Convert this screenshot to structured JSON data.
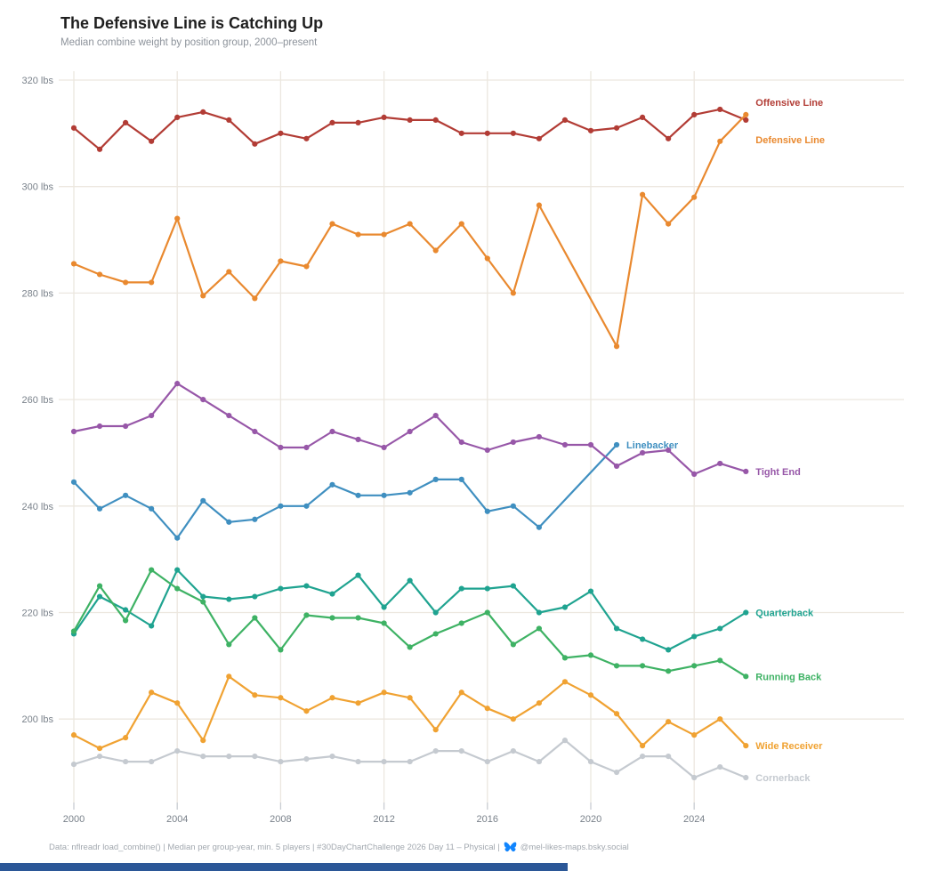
{
  "title": "The Defensive Line is Catching Up",
  "subtitle": "Median combine weight by position group, 2000–present",
  "footer": {
    "text": "Data: nflreadr load_combine() | Median per group-year, min. 5 players | #30DayChartChallenge 2026 Day 11 – Physical |",
    "icon": "bluesky-butterfly",
    "icon_color": "#1185fe",
    "handle": "@mel-likes-maps.bsky.social"
  },
  "colors": {
    "background": "#ffffff",
    "grid": "#ece7df",
    "axis_text": "#79818a",
    "title_text": "#1f1f1f",
    "subtitle_text": "#8d939b",
    "footer_text": "#a2a8af",
    "bottom_bar": "#2b5797"
  },
  "chart_data": {
    "type": "line",
    "title": "The Defensive Line is Catching Up",
    "subtitle": "Median combine weight by position group, 2000–present",
    "xlabel": "",
    "ylabel": "lbs",
    "grid": true,
    "legend_position": "line-end-labels-right",
    "ylim": [
      186,
      322
    ],
    "x": [
      2000,
      2001,
      2002,
      2003,
      2004,
      2005,
      2006,
      2007,
      2008,
      2009,
      2010,
      2011,
      2012,
      2013,
      2014,
      2015,
      2016,
      2017,
      2018,
      2019,
      2020,
      2021,
      2022,
      2023,
      2024,
      2025,
      2026
    ],
    "x_ticks": [
      2000,
      2004,
      2008,
      2012,
      2016,
      2020,
      2024
    ],
    "y_ticks": [
      {
        "value": 200,
        "label": "200 lbs"
      },
      {
        "value": 220,
        "label": "220 lbs"
      },
      {
        "value": 240,
        "label": "240 lbs"
      },
      {
        "value": 260,
        "label": "260 lbs"
      },
      {
        "value": 280,
        "label": "280 lbs"
      },
      {
        "value": 300,
        "label": "300 lbs"
      },
      {
        "value": 320,
        "label": "320 lbs"
      }
    ],
    "series": [
      {
        "name": "Offensive Line",
        "color": "#b23c35",
        "label_dy": -16,
        "values": [
          311,
          307,
          312,
          308.5,
          313,
          314,
          312.5,
          308,
          310,
          309,
          312,
          312,
          313,
          312.5,
          312.5,
          310,
          310,
          310,
          309,
          312.5,
          310.5,
          311,
          313,
          309,
          313.5,
          314.5,
          312.5
        ]
      },
      {
        "name": "Defensive Line",
        "color": "#e9892f",
        "label_dy": 32,
        "values": [
          285.5,
          283.5,
          282,
          282,
          294,
          279.5,
          284,
          279,
          286,
          285,
          293,
          291,
          291,
          293,
          288,
          293,
          286.5,
          280,
          296.5,
          null,
          null,
          270,
          298.5,
          293,
          298,
          308.5,
          313.5
        ]
      },
      {
        "name": "Linebacker",
        "color": "#3f8fc0",
        "label_dy": 4,
        "values": [
          244.5,
          239.5,
          242,
          239.5,
          234,
          241,
          237,
          237.5,
          240,
          240,
          244,
          242,
          242,
          242.5,
          245,
          245,
          239,
          240,
          236,
          null,
          null,
          251.5,
          null,
          null,
          null,
          null,
          null
        ]
      },
      {
        "name": "Tight End",
        "color": "#9757a8",
        "label_dy": 4,
        "values": [
          254,
          255,
          255,
          257,
          263,
          260,
          257,
          254,
          251,
          251,
          254,
          252.5,
          251,
          254,
          257,
          252,
          250.5,
          252,
          253,
          251.5,
          251.5,
          247.5,
          250,
          250.5,
          246,
          248,
          246.5
        ]
      },
      {
        "name": "Quarterback",
        "color": "#1fa390",
        "label_dy": 4,
        "values": [
          216,
          223,
          220.5,
          217.5,
          228,
          223,
          222.5,
          223,
          224.5,
          225,
          223.5,
          227,
          221,
          226,
          220,
          224.5,
          224.5,
          225,
          220,
          221,
          224,
          217,
          215,
          213,
          215.5,
          217,
          220
        ]
      },
      {
        "name": "Running Back",
        "color": "#3eb264",
        "label_dy": 4,
        "values": [
          216.5,
          225,
          218.5,
          228,
          224.5,
          222,
          214,
          219,
          213,
          219.5,
          219,
          219,
          218,
          213.5,
          216,
          218,
          220,
          214,
          217,
          211.5,
          212,
          210,
          210,
          209,
          210,
          211,
          208
        ]
      },
      {
        "name": "Wide Receiver",
        "color": "#f0a232",
        "label_dy": 4,
        "values": [
          197,
          194.5,
          196.5,
          205,
          203,
          196,
          208,
          204.5,
          204,
          201.5,
          204,
          203,
          205,
          204,
          198,
          205,
          202,
          200,
          203,
          207,
          204.5,
          201,
          195,
          199.5,
          197,
          200,
          195
        ]
      },
      {
        "name": "Cornerback",
        "color": "#c5cad0",
        "label_dy": 4,
        "values": [
          191.5,
          193,
          192,
          192,
          194,
          193,
          193,
          193,
          192,
          192.5,
          193,
          192,
          192,
          192,
          194,
          194,
          192,
          194,
          192,
          196,
          192,
          190,
          193,
          193,
          189,
          191,
          189
        ]
      }
    ]
  }
}
